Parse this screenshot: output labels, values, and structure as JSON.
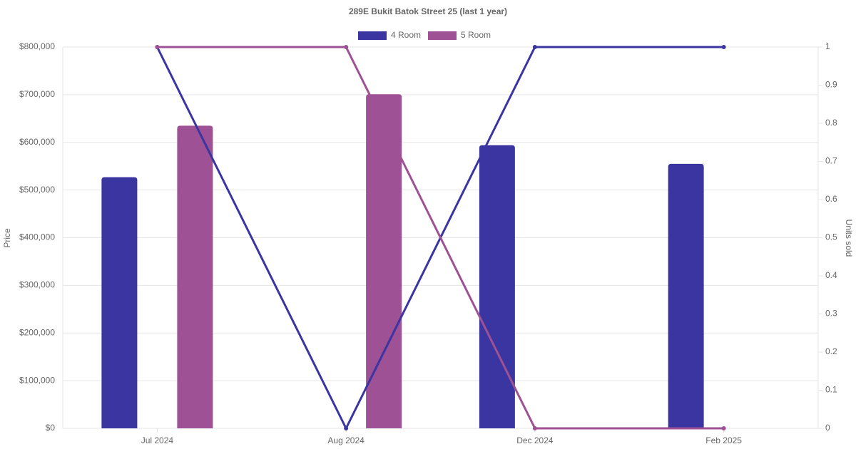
{
  "chart_data": {
    "type": "bar",
    "title": "289E Bukit Batok Street 25 (last 1 year)",
    "categories": [
      "Jul 2024",
      "Aug 2024",
      "Dec 2024",
      "Feb 2025"
    ],
    "y_label": "Price",
    "y2_label": "Units sold",
    "series": [
      {
        "name": "4 Room",
        "color": "#3a35a1",
        "values": [
          527000,
          null,
          594000,
          555000
        ],
        "line_values": [
          1,
          0,
          1,
          1
        ],
        "line_axis": "y2"
      },
      {
        "name": "5 Room",
        "color": "#9e5194",
        "values": [
          635000,
          701000,
          null,
          null
        ],
        "line_values": [
          1,
          1,
          0,
          0
        ],
        "line_axis": "y2"
      }
    ],
    "ylim": [
      0,
      800000
    ],
    "yticks": [
      {
        "value": 0,
        "label": "$0"
      },
      {
        "value": 100000,
        "label": "$100,000"
      },
      {
        "value": 200000,
        "label": "$200,000"
      },
      {
        "value": 300000,
        "label": "$300,000"
      },
      {
        "value": 400000,
        "label": "$400,000"
      },
      {
        "value": 500000,
        "label": "$500,000"
      },
      {
        "value": 600000,
        "label": "$600,000"
      },
      {
        "value": 700000,
        "label": "$700,000"
      },
      {
        "value": 800000,
        "label": "$800,000"
      }
    ],
    "y2lim": [
      0,
      1
    ],
    "y2ticks": [
      0,
      0.1,
      0.2,
      0.3,
      0.4,
      0.5,
      0.6,
      0.7,
      0.8,
      0.9,
      1
    ],
    "grid": true,
    "legend": "top"
  }
}
